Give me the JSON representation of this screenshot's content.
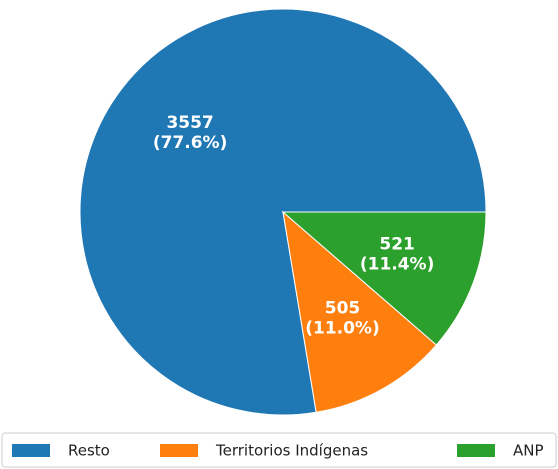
{
  "chart_data": {
    "type": "pie",
    "categories": [
      "Resto",
      "Territorios Indígenas",
      "ANP"
    ],
    "values": [
      3557,
      505,
      521
    ],
    "value_labels": [
      [
        "3557",
        "(77.6%)"
      ],
      [
        "505",
        "(11.0%)"
      ],
      [
        "521",
        "(11.4%)"
      ]
    ],
    "colors": [
      "#1f77b4",
      "#ff7f0e",
      "#2ca02c"
    ],
    "legend": "lower center"
  }
}
